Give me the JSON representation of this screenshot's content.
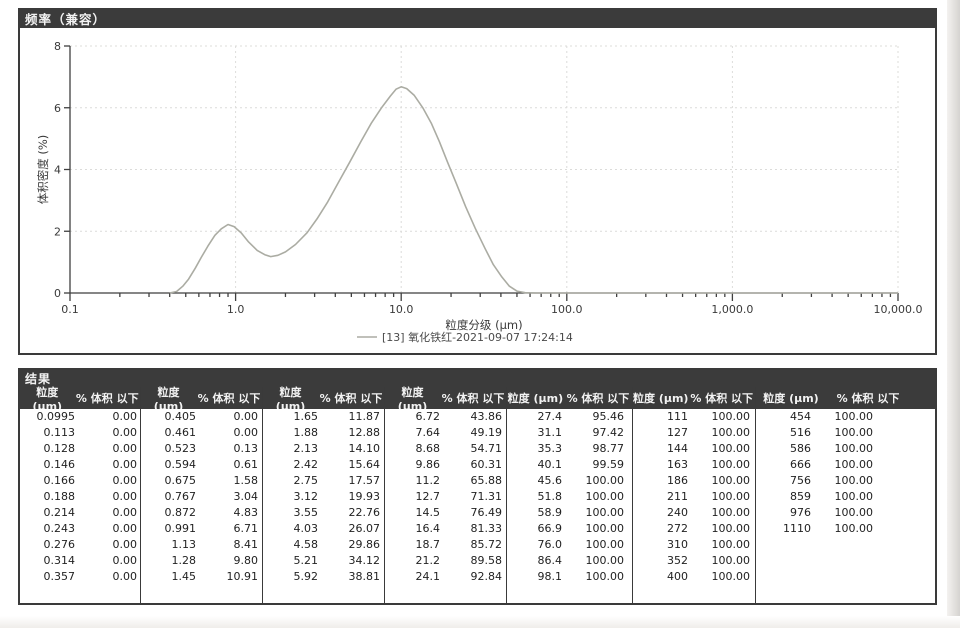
{
  "colors": {
    "header_bg": "#3b3b3b",
    "header_text": "#f2f2f2",
    "panel_border": "#3a3a3a",
    "curve": "#abaca3",
    "grid": "#dcdcda",
    "axis": "#3f3f3f"
  },
  "frequency_panel": {
    "title": "频率（兼容）"
  },
  "chart_data": {
    "type": "line",
    "title": "频率（兼容）",
    "xlabel": "粒度分级 (μm)",
    "ylabel": "体积密度 (%)",
    "x_axis": {
      "scale": "log",
      "min": 0.1,
      "max": 10000,
      "tick_values": [
        0.1,
        1,
        10,
        100,
        1000,
        10000
      ],
      "tick_labels": [
        "0.1",
        "1.0",
        "10.0",
        "100.0",
        "1,000.0",
        "10,000.0"
      ]
    },
    "y_axis": {
      "min": 0,
      "max": 8,
      "tick_values": [
        0,
        2,
        4,
        6,
        8
      ]
    },
    "grid": "dashed, at decade verticals and even horizontals",
    "legend": "[13] 氧化铁红-2021-09-07 17:24:14",
    "legend_position": "bottom-center",
    "series": [
      {
        "name": "[13] 氧化铁红-2021-09-07 17:24:14",
        "points": [
          [
            0.4,
            0
          ],
          [
            0.44,
            0.05
          ],
          [
            0.48,
            0.22
          ],
          [
            0.52,
            0.45
          ],
          [
            0.57,
            0.8
          ],
          [
            0.62,
            1.15
          ],
          [
            0.68,
            1.52
          ],
          [
            0.75,
            1.87
          ],
          [
            0.82,
            2.08
          ],
          [
            0.9,
            2.22
          ],
          [
            0.98,
            2.15
          ],
          [
            1.08,
            1.95
          ],
          [
            1.2,
            1.65
          ],
          [
            1.35,
            1.38
          ],
          [
            1.5,
            1.24
          ],
          [
            1.63,
            1.18
          ],
          [
            1.8,
            1.22
          ],
          [
            2.0,
            1.33
          ],
          [
            2.3,
            1.57
          ],
          [
            2.7,
            1.95
          ],
          [
            3.1,
            2.4
          ],
          [
            3.6,
            2.95
          ],
          [
            4.2,
            3.6
          ],
          [
            4.9,
            4.25
          ],
          [
            5.7,
            4.9
          ],
          [
            6.6,
            5.5
          ],
          [
            7.6,
            6.0
          ],
          [
            8.6,
            6.38
          ],
          [
            9.3,
            6.6
          ],
          [
            10.0,
            6.68
          ],
          [
            10.8,
            6.62
          ],
          [
            12.0,
            6.4
          ],
          [
            13.5,
            6.0
          ],
          [
            15.2,
            5.5
          ],
          [
            17.0,
            4.9
          ],
          [
            19.0,
            4.25
          ],
          [
            21.5,
            3.55
          ],
          [
            24.5,
            2.8
          ],
          [
            28.0,
            2.1
          ],
          [
            32.0,
            1.45
          ],
          [
            36.0,
            0.92
          ],
          [
            40.5,
            0.52
          ],
          [
            45.0,
            0.22
          ],
          [
            50.0,
            0.06
          ],
          [
            56.0,
            0.01
          ],
          [
            65.0,
            0
          ],
          [
            200,
            0
          ],
          [
            2000,
            0
          ],
          [
            10000,
            0
          ]
        ]
      }
    ]
  },
  "results_panel": {
    "title": "结果",
    "col_headers": {
      "size": "粒度 (μm)",
      "pct": "% 体积 以下"
    },
    "groups": [
      {
        "rows": [
          [
            "0.0995",
            "0.00"
          ],
          [
            "0.113",
            "0.00"
          ],
          [
            "0.128",
            "0.00"
          ],
          [
            "0.146",
            "0.00"
          ],
          [
            "0.166",
            "0.00"
          ],
          [
            "0.188",
            "0.00"
          ],
          [
            "0.214",
            "0.00"
          ],
          [
            "0.243",
            "0.00"
          ],
          [
            "0.276",
            "0.00"
          ],
          [
            "0.314",
            "0.00"
          ],
          [
            "0.357",
            "0.00"
          ]
        ]
      },
      {
        "rows": [
          [
            "0.405",
            "0.00"
          ],
          [
            "0.461",
            "0.00"
          ],
          [
            "0.523",
            "0.13"
          ],
          [
            "0.594",
            "0.61"
          ],
          [
            "0.675",
            "1.58"
          ],
          [
            "0.767",
            "3.04"
          ],
          [
            "0.872",
            "4.83"
          ],
          [
            "0.991",
            "6.71"
          ],
          [
            "1.13",
            "8.41"
          ],
          [
            "1.28",
            "9.80"
          ],
          [
            "1.45",
            "10.91"
          ]
        ]
      },
      {
        "rows": [
          [
            "1.65",
            "11.87"
          ],
          [
            "1.88",
            "12.88"
          ],
          [
            "2.13",
            "14.10"
          ],
          [
            "2.42",
            "15.64"
          ],
          [
            "2.75",
            "17.57"
          ],
          [
            "3.12",
            "19.93"
          ],
          [
            "3.55",
            "22.76"
          ],
          [
            "4.03",
            "26.07"
          ],
          [
            "4.58",
            "29.86"
          ],
          [
            "5.21",
            "34.12"
          ],
          [
            "5.92",
            "38.81"
          ]
        ]
      },
      {
        "rows": [
          [
            "6.72",
            "43.86"
          ],
          [
            "7.64",
            "49.19"
          ],
          [
            "8.68",
            "54.71"
          ],
          [
            "9.86",
            "60.31"
          ],
          [
            "11.2",
            "65.88"
          ],
          [
            "12.7",
            "71.31"
          ],
          [
            "14.5",
            "76.49"
          ],
          [
            "16.4",
            "81.33"
          ],
          [
            "18.7",
            "85.72"
          ],
          [
            "21.2",
            "89.58"
          ],
          [
            "24.1",
            "92.84"
          ]
        ]
      },
      {
        "rows": [
          [
            "27.4",
            "95.46"
          ],
          [
            "31.1",
            "97.42"
          ],
          [
            "35.3",
            "98.77"
          ],
          [
            "40.1",
            "99.59"
          ],
          [
            "45.6",
            "100.00"
          ],
          [
            "51.8",
            "100.00"
          ],
          [
            "58.9",
            "100.00"
          ],
          [
            "66.9",
            "100.00"
          ],
          [
            "76.0",
            "100.00"
          ],
          [
            "86.4",
            "100.00"
          ],
          [
            "98.1",
            "100.00"
          ]
        ]
      },
      {
        "rows": [
          [
            "111",
            "100.00"
          ],
          [
            "127",
            "100.00"
          ],
          [
            "144",
            "100.00"
          ],
          [
            "163",
            "100.00"
          ],
          [
            "186",
            "100.00"
          ],
          [
            "211",
            "100.00"
          ],
          [
            "240",
            "100.00"
          ],
          [
            "272",
            "100.00"
          ],
          [
            "310",
            "100.00"
          ],
          [
            "352",
            "100.00"
          ],
          [
            "400",
            "100.00"
          ]
        ]
      },
      {
        "rows": [
          [
            "454",
            "100.00"
          ],
          [
            "516",
            "100.00"
          ],
          [
            "586",
            "100.00"
          ],
          [
            "666",
            "100.00"
          ],
          [
            "756",
            "100.00"
          ],
          [
            "859",
            "100.00"
          ],
          [
            "976",
            "100.00"
          ],
          [
            "1110",
            "100.00"
          ]
        ]
      }
    ]
  }
}
